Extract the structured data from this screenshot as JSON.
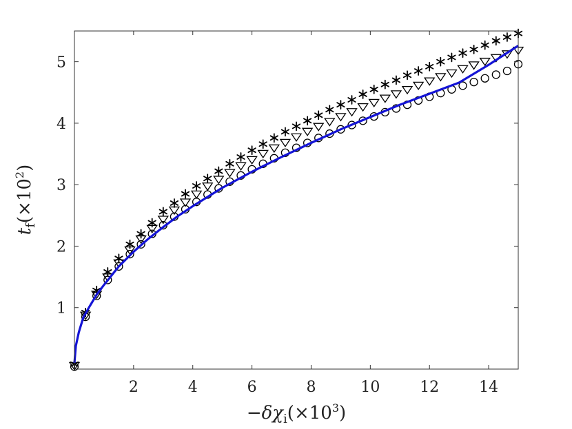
{
  "chart_data": {
    "type": "scatter",
    "title": "",
    "xlabel": "−δχ",
    "xlabel_sub": "i",
    "xlabel_scale": "(×10",
    "xlabel_exp": "3",
    "xlabel_close": ")",
    "ylabel": "t",
    "ylabel_sub": "f",
    "ylabel_scale": "(×10",
    "ylabel_exp": "2",
    "ylabel_close": ")",
    "xlim": [
      0,
      15
    ],
    "ylim": [
      0,
      5.5
    ],
    "xticks": [
      2,
      4,
      6,
      8,
      10,
      12,
      14
    ],
    "xtick_labels": [
      "2",
      "4",
      "6",
      "8",
      "10",
      "12",
      "14"
    ],
    "yticks": [
      1,
      2,
      3,
      4,
      5
    ],
    "ytick_labels": [
      "1",
      "2",
      "3",
      "4",
      "5"
    ],
    "grid": false,
    "legend": "none",
    "series": [
      {
        "marker": "asterisk",
        "color": "#000000",
        "x": [
          0,
          0.375,
          0.75,
          1.125,
          1.5,
          1.875,
          2.25,
          2.625,
          3.0,
          3.375,
          3.75,
          4.125,
          4.5,
          4.875,
          5.25,
          5.625,
          6.0,
          6.375,
          6.75,
          7.125,
          7.5,
          7.875,
          8.25,
          8.625,
          9.0,
          9.375,
          9.75,
          10.125,
          10.5,
          10.875,
          11.25,
          11.625,
          12.0,
          12.375,
          12.75,
          13.125,
          13.5,
          13.875,
          14.25,
          14.625,
          15.0
        ],
        "y": [
          0.08,
          0.92,
          1.28,
          1.58,
          1.8,
          2.03,
          2.2,
          2.38,
          2.56,
          2.7,
          2.85,
          2.98,
          3.1,
          3.22,
          3.34,
          3.45,
          3.56,
          3.66,
          3.76,
          3.86,
          3.95,
          4.04,
          4.13,
          4.22,
          4.3,
          4.38,
          4.47,
          4.55,
          4.63,
          4.7,
          4.78,
          4.85,
          4.92,
          5.0,
          5.07,
          5.14,
          5.2,
          5.27,
          5.34,
          5.4,
          5.46
        ]
      },
      {
        "marker": "triangle-down",
        "color": "#000000",
        "x": [
          0,
          0.375,
          0.75,
          1.125,
          1.5,
          1.875,
          2.25,
          2.625,
          3.0,
          3.375,
          3.75,
          4.125,
          4.5,
          4.875,
          5.25,
          5.625,
          6.0,
          6.375,
          6.75,
          7.125,
          7.5,
          7.875,
          8.25,
          8.625,
          9.0,
          9.375,
          9.75,
          10.125,
          10.5,
          10.875,
          11.25,
          11.625,
          12.0,
          12.375,
          12.75,
          13.125,
          13.5,
          13.875,
          14.25,
          14.625,
          15.0
        ],
        "y": [
          0.06,
          0.88,
          1.22,
          1.5,
          1.73,
          1.94,
          2.12,
          2.29,
          2.44,
          2.59,
          2.72,
          2.85,
          2.98,
          3.09,
          3.2,
          3.31,
          3.41,
          3.51,
          3.6,
          3.69,
          3.78,
          3.87,
          3.95,
          4.03,
          4.11,
          4.19,
          4.27,
          4.34,
          4.41,
          4.48,
          4.55,
          4.62,
          4.69,
          4.76,
          4.82,
          4.89,
          4.95,
          5.01,
          5.07,
          5.13,
          5.19
        ]
      },
      {
        "marker": "circle",
        "color": "#000000",
        "x": [
          0,
          0.375,
          0.75,
          1.125,
          1.5,
          1.875,
          2.25,
          2.625,
          3.0,
          3.375,
          3.75,
          4.125,
          4.5,
          4.875,
          5.25,
          5.625,
          6.0,
          6.375,
          6.75,
          7.125,
          7.5,
          7.875,
          8.25,
          8.625,
          9.0,
          9.375,
          9.75,
          10.125,
          10.5,
          10.875,
          11.25,
          11.625,
          12.0,
          12.375,
          12.75,
          13.125,
          13.5,
          13.875,
          14.25,
          14.625,
          15.0
        ],
        "y": [
          0.04,
          0.85,
          1.19,
          1.45,
          1.67,
          1.87,
          2.03,
          2.2,
          2.34,
          2.48,
          2.6,
          2.72,
          2.84,
          2.94,
          3.05,
          3.15,
          3.25,
          3.34,
          3.43,
          3.52,
          3.6,
          3.68,
          3.76,
          3.83,
          3.9,
          3.97,
          4.04,
          4.11,
          4.18,
          4.24,
          4.3,
          4.37,
          4.43,
          4.49,
          4.55,
          4.61,
          4.67,
          4.73,
          4.79,
          4.85,
          4.96
        ]
      },
      {
        "marker": "line",
        "color": "#1414d6",
        "x": [
          0.0,
          0.05,
          0.15,
          0.3,
          0.5,
          0.75,
          1.0,
          1.5,
          2.0,
          2.5,
          3.0,
          3.5,
          4.0,
          5.0,
          6.0,
          7.0,
          8.0,
          9.0,
          10.0,
          11.0,
          12.0,
          13.0,
          14.0,
          15.0
        ],
        "y": [
          0.1,
          0.38,
          0.6,
          0.84,
          1.01,
          1.21,
          1.37,
          1.67,
          1.91,
          2.12,
          2.31,
          2.49,
          2.65,
          2.95,
          3.21,
          3.45,
          3.68,
          3.9,
          4.1,
          4.3,
          4.48,
          4.66,
          4.95,
          5.26
        ]
      }
    ]
  }
}
